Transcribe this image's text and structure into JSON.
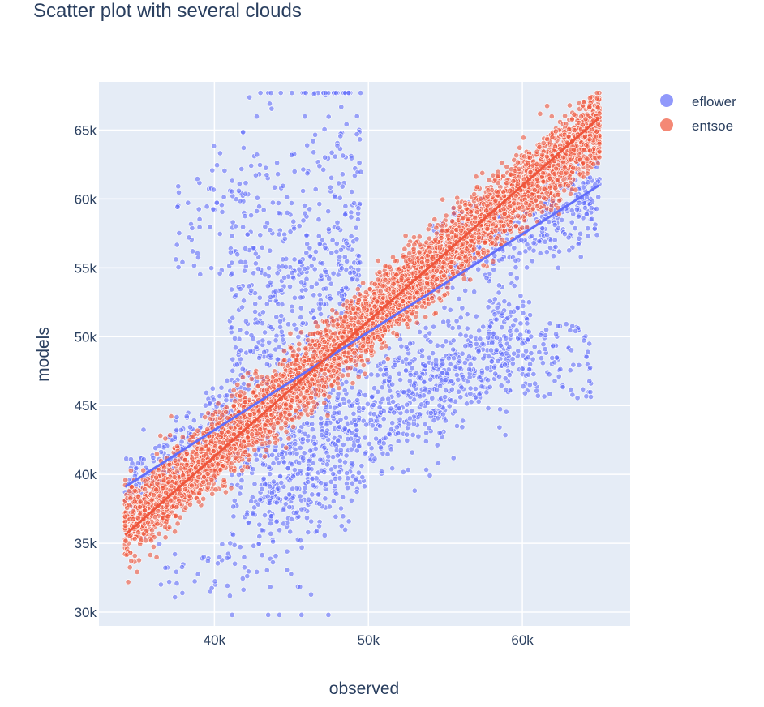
{
  "chart_data": {
    "type": "scatter",
    "title": "Scatter plot with several clouds",
    "xlabel": "observed",
    "ylabel": "models",
    "xlim": [
      32500,
      67000
    ],
    "ylim": [
      29000,
      68500
    ],
    "x_ticks": [
      40000,
      50000,
      60000
    ],
    "x_tick_labels": [
      "40k",
      "50k",
      "60k"
    ],
    "y_ticks": [
      30000,
      35000,
      40000,
      45000,
      50000,
      55000,
      60000,
      65000
    ],
    "y_tick_labels": [
      "30k",
      "35k",
      "40k",
      "45k",
      "50k",
      "55k",
      "60k",
      "65k"
    ],
    "grid": true,
    "legend_position": "top-right",
    "background": "#e5ecf6",
    "series": [
      {
        "name": "eflower",
        "color": "#636efa",
        "trendline": {
          "x": [
            34200,
            65000
          ],
          "y": [
            39100,
            61000
          ]
        },
        "clusters": [
          {
            "x": [
              34200,
              41500
            ],
            "y": [
              37000,
              46000
            ],
            "n": 260,
            "note_corr": 0.7
          },
          {
            "x": [
              36000,
              41000
            ],
            "y": [
              31000,
              35000
            ],
            "n": 30,
            "note_corr": 0.0
          },
          {
            "x": [
              37500,
              42000
            ],
            "y": [
              56000,
              62000
            ],
            "n": 60,
            "note_corr": 0.3
          },
          {
            "x": [
              41000,
              49500
            ],
            "y": [
              38000,
              62000
            ],
            "n": 900,
            "note_corr": 0.3
          },
          {
            "x": [
              42500,
              51000
            ],
            "y": [
              36500,
              46000
            ],
            "n": 380,
            "note_corr": 0.5
          },
          {
            "x": [
              51000,
              60500
            ],
            "y": [
              42500,
              52500
            ],
            "n": 540,
            "note_corr": 0.55
          },
          {
            "x": [
              60000,
              64500
            ],
            "y": [
              45500,
              51000
            ],
            "n": 90,
            "note_corr": 0.0
          },
          {
            "x": [
              54000,
              65000
            ],
            "y": [
              54000,
              61500
            ],
            "n": 420,
            "note_corr": 0.6
          }
        ]
      },
      {
        "name": "entsoe",
        "color": "#ef553b",
        "trendline": {
          "x": [
            34200,
            65000
          ],
          "y": [
            35600,
            65900
          ]
        },
        "clusters": [
          {
            "x": [
              34200,
              65000
            ],
            "y": [
              35600,
              65900
            ],
            "n": 5200,
            "note_corr": 0.97
          }
        ]
      }
    ]
  }
}
